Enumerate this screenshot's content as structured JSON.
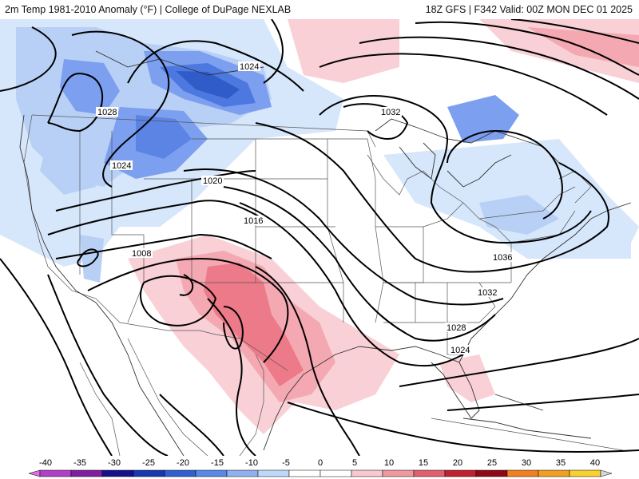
{
  "header": {
    "left_title": "2m Temp 1981-2010 Anomaly (°F) | College of DuPage NEXLAB",
    "right_title": "18Z GFS | F342 Valid: 00Z MON DEC 01 2025"
  },
  "map": {
    "isobar_labels": [
      "1024",
      "1028",
      "1032",
      "1024",
      "1020",
      "1016",
      "1008",
      "1036",
      "1032",
      "1028",
      "1024"
    ]
  },
  "colorbar": {
    "ticks": [
      "-40",
      "-35",
      "-30",
      "-25",
      "-20",
      "-15",
      "-10",
      "-5",
      "0",
      "5",
      "10",
      "15",
      "20",
      "25",
      "30",
      "35",
      "40"
    ],
    "colors": [
      "#e070e0",
      "#b040c8",
      "#8020a0",
      "#18108a",
      "#1838b0",
      "#3060d0",
      "#5888e8",
      "#90b0f0",
      "#c0d8f8",
      "#ffffff",
      "#ffffff",
      "#f8c8d0",
      "#f098a0",
      "#e06070",
      "#c02030",
      "#900818",
      "#f08020",
      "#f0a020",
      "#f8d030",
      "#d8d8d8"
    ]
  }
}
